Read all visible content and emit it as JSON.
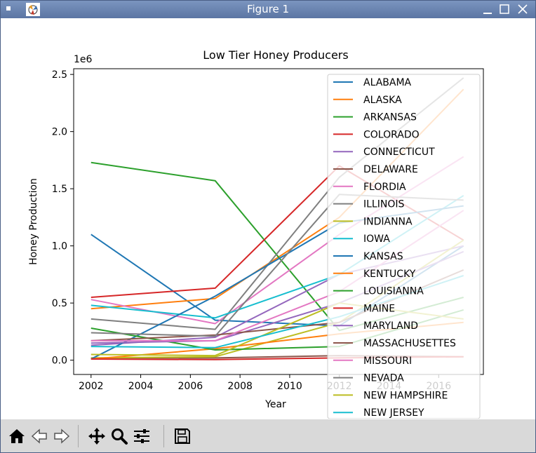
{
  "window": {
    "title": "Figure 1"
  },
  "chart_data": {
    "type": "line",
    "title": "Low Tier Honey Producers",
    "xlabel": "Year",
    "ylabel": "Honey Production",
    "offset_text": "1e6",
    "xlim": [
      2001.3,
      2017.8
    ],
    "ylim": [
      -125000,
      2550000
    ],
    "xticks": [
      2002,
      2004,
      2006,
      2008,
      2010,
      2012,
      2014,
      2016
    ],
    "yticks": [
      0,
      500000,
      1000000,
      1500000,
      2000000,
      2500000
    ],
    "ytick_labels": [
      "0.0",
      "0.5",
      "1.0",
      "1.5",
      "2.0",
      "2.5"
    ],
    "x": [
      2002,
      2007,
      2012,
      2017
    ],
    "legend_position": "upper right",
    "series": [
      {
        "name": "ALABAMA",
        "color": "#1f77b4",
        "values": [
          1100000,
          350000,
          300000,
          1000000
        ]
      },
      {
        "name": "ALASKA",
        "color": "#ff7f0e",
        "values": [
          450000,
          540000,
          1250000,
          2370000
        ]
      },
      {
        "name": "ARKANSAS",
        "color": "#2ca02c",
        "values": [
          1730000,
          1570000,
          260000,
          550000
        ]
      },
      {
        "name": "COLORADO",
        "color": "#d62728",
        "values": [
          550000,
          630000,
          1700000,
          1050000
        ]
      },
      {
        "name": "CONNECTICUT",
        "color": "#9467bd",
        "values": [
          130000,
          200000,
          750000,
          1000000
        ]
      },
      {
        "name": "DELAWARE",
        "color": "#8c564b",
        "values": [
          20000,
          20000,
          40000,
          30000
        ]
      },
      {
        "name": "FLORDIA",
        "color": "#e377c2",
        "values": [
          530000,
          320000,
          1100000,
          1780000
        ]
      },
      {
        "name": "ILLINOIS",
        "color": "#7f7f7f",
        "values": [
          360000,
          270000,
          1600000,
          2470000
        ]
      },
      {
        "name": "INDIANNA",
        "color": "#bcbd22",
        "values": [
          20000,
          30000,
          330000,
          1050000
        ]
      },
      {
        "name": "IOWA",
        "color": "#17becf",
        "values": [
          480000,
          370000,
          750000,
          1440000
        ]
      },
      {
        "name": "KANSAS",
        "color": "#1f77b4",
        "values": [
          10000,
          560000,
          1200000,
          1350000
        ]
      },
      {
        "name": "KENTUCKY",
        "color": "#ff7f0e",
        "values": [
          10000,
          100000,
          230000,
          330000
        ]
      },
      {
        "name": "LOUISIANNA",
        "color": "#2ca02c",
        "values": [
          280000,
          90000,
          120000,
          440000
        ]
      },
      {
        "name": "MAINE",
        "color": "#d62728",
        "values": [
          10000,
          5000,
          20000,
          30000
        ]
      },
      {
        "name": "MARYLAND",
        "color": "#9467bd",
        "values": [
          150000,
          170000,
          500000,
          950000
        ]
      },
      {
        "name": "MASSACHUSETTES",
        "color": "#8c564b",
        "values": [
          170000,
          220000,
          330000,
          790000
        ]
      },
      {
        "name": "MISSOURI",
        "color": "#e377c2",
        "values": [
          170000,
          170000,
          600000,
          1310000
        ]
      },
      {
        "name": "NEVADA",
        "color": "#7f7f7f",
        "values": [
          240000,
          210000,
          1450000,
          1400000
        ]
      },
      {
        "name": "NEW HAMPSHIRE",
        "color": "#bcbd22",
        "values": [
          50000,
          40000,
          500000,
          360000
        ]
      },
      {
        "name": "NEW JERSEY",
        "color": "#17becf",
        "values": [
          120000,
          110000,
          380000,
          740000
        ]
      }
    ]
  },
  "toolbar": {
    "home_icon": "home-icon",
    "back_icon": "back-arrow-icon",
    "forward_icon": "forward-arrow-icon",
    "pan_icon": "pan-icon",
    "zoom_icon": "zoom-icon",
    "configure_icon": "configure-subplots-icon",
    "save_icon": "save-icon"
  }
}
